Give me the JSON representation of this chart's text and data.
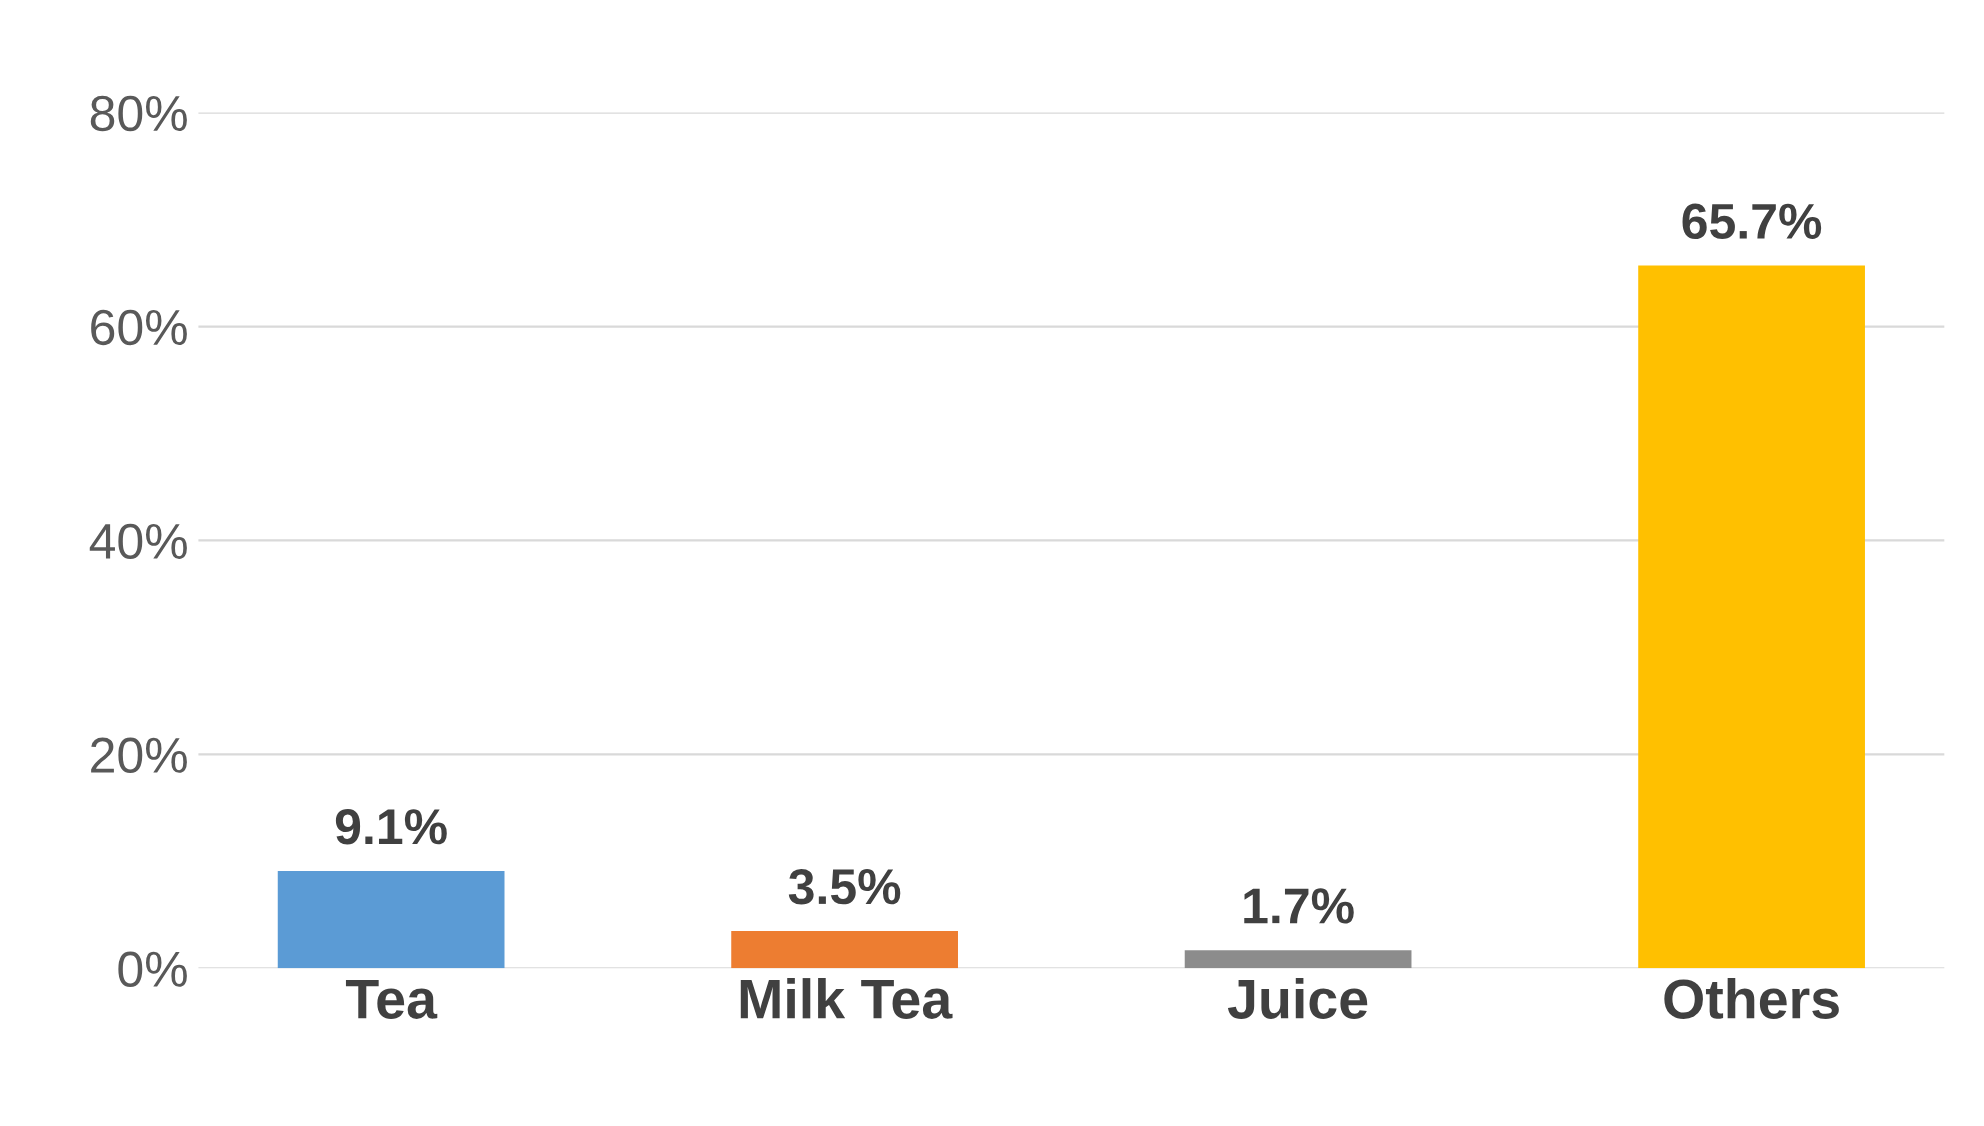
{
  "chart_data": {
    "type": "bar",
    "categories": [
      "Tea",
      "Milk Tea",
      "Juice",
      "Others"
    ],
    "values": [
      9.1,
      3.5,
      1.7,
      65.7
    ],
    "colors": [
      "#5b9bd5",
      "#ed7d31",
      "#8c8c8c",
      "#ffc000"
    ],
    "value_labels": [
      "9.1%",
      "3.5%",
      "1.7%",
      "65.7%"
    ],
    "ylim": [
      0,
      80
    ],
    "yticks": [
      {
        "value": 0,
        "label": "0%"
      },
      {
        "value": 20,
        "label": "20%"
      },
      {
        "value": 40,
        "label": "40%"
      },
      {
        "value": 60,
        "label": "60%"
      },
      {
        "value": 80,
        "label": "80%"
      }
    ],
    "grid": "y"
  }
}
